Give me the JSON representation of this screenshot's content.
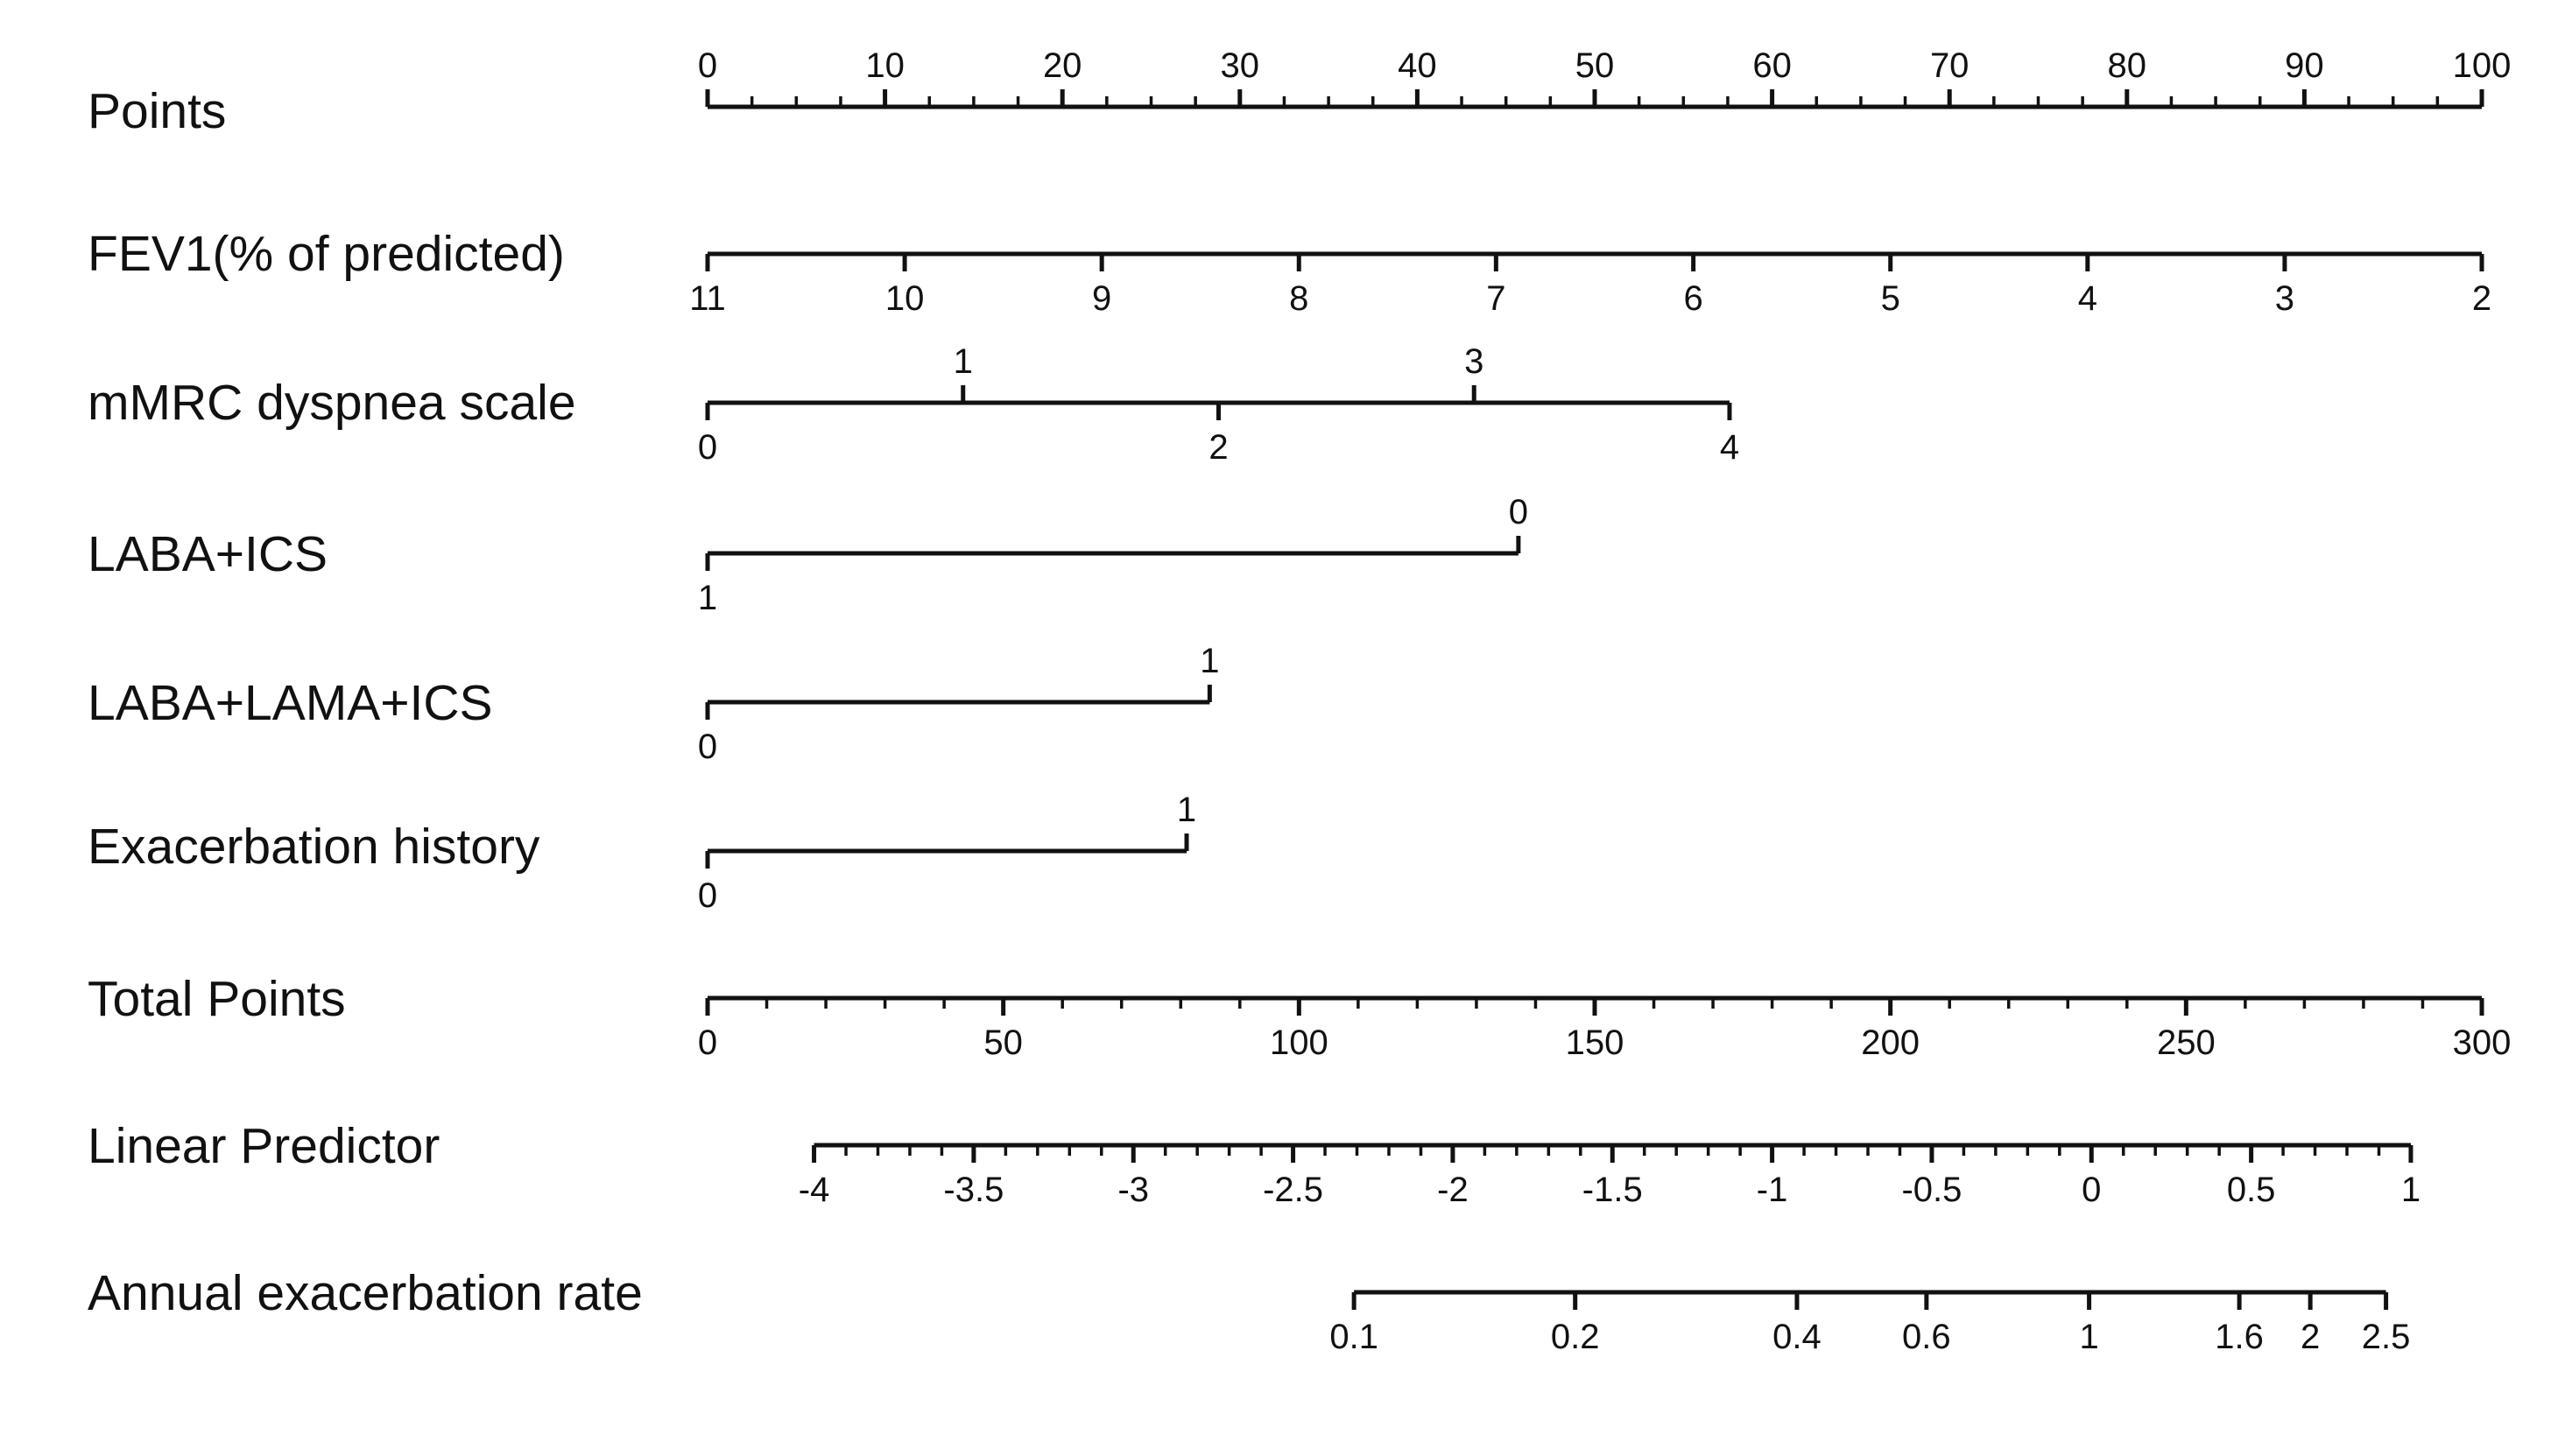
{
  "chart_data": {
    "type": "nomogram",
    "title": "",
    "scales": [
      {
        "name": "Points",
        "orientation": "up",
        "min": 0,
        "max": 100,
        "ticks": [
          {
            "value": 0,
            "label": "0"
          },
          {
            "value": 10,
            "label": "10"
          },
          {
            "value": 20,
            "label": "20"
          },
          {
            "value": 30,
            "label": "30"
          },
          {
            "value": 40,
            "label": "40"
          },
          {
            "value": 50,
            "label": "50"
          },
          {
            "value": 60,
            "label": "60"
          },
          {
            "value": 70,
            "label": "70"
          },
          {
            "value": 80,
            "label": "80"
          },
          {
            "value": 90,
            "label": "90"
          },
          {
            "value": 100,
            "label": "100"
          }
        ],
        "minor_step": 2.5
      },
      {
        "name": "FEV1(% of predicted)",
        "orientation": "down",
        "points_start": 0,
        "points_end": 100,
        "ticks": [
          {
            "points": 0,
            "label": "11"
          },
          {
            "points": 11.11,
            "label": "10"
          },
          {
            "points": 22.22,
            "label": "9"
          },
          {
            "points": 33.33,
            "label": "8"
          },
          {
            "points": 44.44,
            "label": "7"
          },
          {
            "points": 55.56,
            "label": "6"
          },
          {
            "points": 66.67,
            "label": "5"
          },
          {
            "points": 77.78,
            "label": "4"
          },
          {
            "points": 88.89,
            "label": "3"
          },
          {
            "points": 100,
            "label": "2"
          }
        ]
      },
      {
        "name": "mMRC dyspnea scale",
        "orientation": "mixed",
        "points_start": 0,
        "points_end": 57.6,
        "ticks": [
          {
            "points": 0,
            "label": "0",
            "side": "down"
          },
          {
            "points": 14.4,
            "label": "1",
            "side": "up"
          },
          {
            "points": 28.8,
            "label": "2",
            "side": "down"
          },
          {
            "points": 43.2,
            "label": "3",
            "side": "up"
          },
          {
            "points": 57.6,
            "label": "4",
            "side": "down"
          }
        ]
      },
      {
        "name": "LABA+ICS",
        "orientation": "mixed",
        "points_start": 0,
        "points_end": 45.7,
        "ticks": [
          {
            "points": 0,
            "label": "1",
            "side": "down"
          },
          {
            "points": 45.7,
            "label": "0",
            "side": "up"
          }
        ]
      },
      {
        "name": "LABA+LAMA+ICS",
        "orientation": "mixed",
        "points_start": 0,
        "points_end": 28.3,
        "ticks": [
          {
            "points": 0,
            "label": "0",
            "side": "down"
          },
          {
            "points": 28.3,
            "label": "1",
            "side": "up"
          }
        ]
      },
      {
        "name": "Exacerbation history",
        "orientation": "mixed",
        "points_start": 0,
        "points_end": 27.0,
        "ticks": [
          {
            "points": 0,
            "label": "0",
            "side": "down"
          },
          {
            "points": 27.0,
            "label": "1",
            "side": "up"
          }
        ]
      },
      {
        "name": "Total Points",
        "orientation": "down",
        "min": 0,
        "max": 300,
        "ticks": [
          {
            "value": 0,
            "label": "0"
          },
          {
            "value": 50,
            "label": "50"
          },
          {
            "value": 100,
            "label": "100"
          },
          {
            "value": 150,
            "label": "150"
          },
          {
            "value": 200,
            "label": "200"
          },
          {
            "value": 250,
            "label": "250"
          },
          {
            "value": 300,
            "label": "300"
          }
        ],
        "minor_step": 10
      },
      {
        "name": "Linear Predictor",
        "orientation": "down",
        "total_points_start": 18,
        "total_points_end": 288,
        "ticks": [
          {
            "total_points": 18,
            "label": "-4"
          },
          {
            "total_points": 45,
            "label": "-3.5"
          },
          {
            "total_points": 72,
            "label": "-3"
          },
          {
            "total_points": 99,
            "label": "-2.5"
          },
          {
            "total_points": 126,
            "label": "-2"
          },
          {
            "total_points": 153,
            "label": "-1.5"
          },
          {
            "total_points": 180,
            "label": "-1"
          },
          {
            "total_points": 207,
            "label": "-0.5"
          },
          {
            "total_points": 234,
            "label": "0"
          },
          {
            "total_points": 261,
            "label": "0.5"
          },
          {
            "total_points": 288,
            "label": "1"
          }
        ],
        "minor_count": 4
      },
      {
        "name": "Annual exacerbation rate",
        "orientation": "down",
        "total_points_start": 109.3,
        "total_points_end": 283.8,
        "ticks": [
          {
            "total_points": 109.3,
            "label": "0.1"
          },
          {
            "total_points": 146.7,
            "label": "0.2"
          },
          {
            "total_points": 184.2,
            "label": "0.4"
          },
          {
            "total_points": 206.1,
            "label": "0.6"
          },
          {
            "total_points": 233.6,
            "label": "1"
          },
          {
            "total_points": 259.0,
            "label": "1.6"
          },
          {
            "total_points": 271.0,
            "label": "2"
          },
          {
            "total_points": 283.8,
            "label": "2.5"
          }
        ]
      }
    ]
  }
}
